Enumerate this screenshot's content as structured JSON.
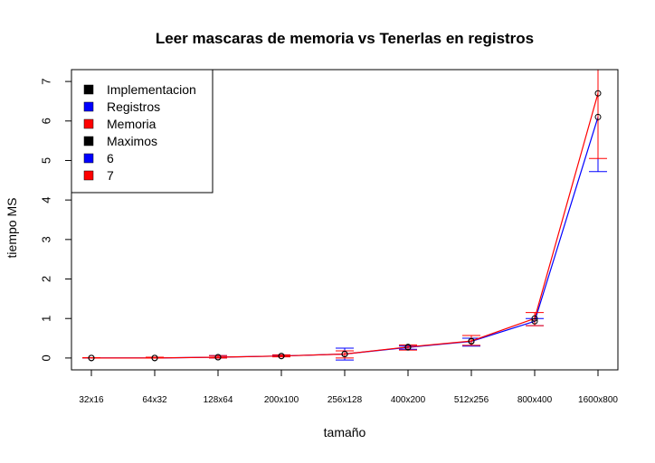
{
  "chart_data": {
    "type": "line",
    "title": "Leer mascaras de memoria vs Tenerlas en registros",
    "xlabel": "tamaño",
    "ylabel": "tiempo MS",
    "categories": [
      "32x16",
      "64x32",
      "128x64",
      "200x100",
      "256x128",
      "400x200",
      "512x256",
      "800x400",
      "1600x800"
    ],
    "ylim": [
      -0.3,
      7.3
    ],
    "yticks": [
      "0",
      "1",
      "2",
      "3",
      "4",
      "5",
      "6",
      "7"
    ],
    "series": [
      {
        "name": "Registros",
        "color": "#0000ff",
        "values": [
          0.0,
          0.0,
          0.02,
          0.05,
          0.1,
          0.27,
          0.42,
          0.93,
          6.1
        ],
        "err_low": [
          0.0,
          0.0,
          0.0,
          0.04,
          -0.05,
          0.22,
          0.3,
          0.82,
          4.72
        ],
        "err_high": [
          0.01,
          0.02,
          0.06,
          0.07,
          0.25,
          0.3,
          0.5,
          1.0,
          7.3
        ]
      },
      {
        "name": "Memoria",
        "color": "#ff0000",
        "values": [
          0.0,
          0.0,
          0.02,
          0.05,
          0.1,
          0.28,
          0.43,
          1.0,
          6.7
        ],
        "err_low": [
          0.0,
          0.0,
          0.0,
          0.03,
          0.0,
          0.2,
          0.32,
          0.82,
          5.05
        ],
        "err_high": [
          0.01,
          0.02,
          0.06,
          0.08,
          0.18,
          0.33,
          0.57,
          1.15,
          7.3
        ]
      }
    ],
    "legend": {
      "position": "top-left",
      "entries": [
        {
          "label": "Implementacion",
          "color": "#000000"
        },
        {
          "label": "Registros",
          "color": "#0000ff"
        },
        {
          "label": "Memoria",
          "color": "#ff0000"
        },
        {
          "label": "Maximos",
          "color": "#000000"
        },
        {
          "label": "6",
          "color": "#0000ff"
        },
        {
          "label": "7",
          "color": "#ff0000"
        }
      ]
    }
  }
}
